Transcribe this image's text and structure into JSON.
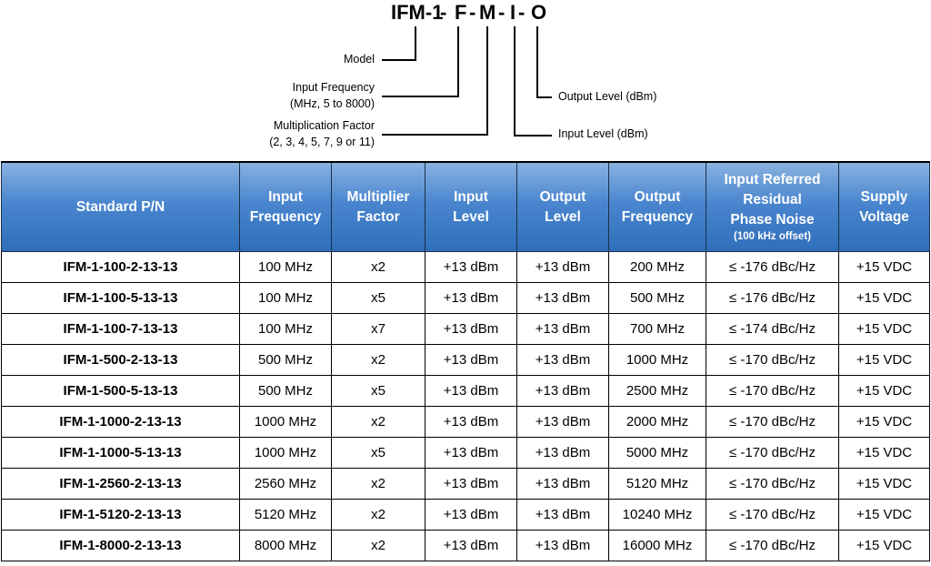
{
  "decoder": {
    "parts": [
      "IFM-1",
      "-",
      "F",
      "-",
      "M",
      "-",
      "I",
      "-",
      "O"
    ],
    "labels": {
      "model": "Model",
      "input_frequency_line1": "Input Frequency",
      "input_frequency_line2": "(MHz, 5 to 8000)",
      "multiplication_line1": "Multiplication Factor",
      "multiplication_line2": "(2, 3, 4, 5, 7, 9 or 11)",
      "output_level": "Output Level (dBm)",
      "input_level": "Input Level (dBm)"
    }
  },
  "table": {
    "headers": [
      {
        "lines": [
          "Standard P/N"
        ]
      },
      {
        "lines": [
          "Input",
          "Frequency"
        ]
      },
      {
        "lines": [
          "Multiplier",
          "Factor"
        ]
      },
      {
        "lines": [
          "Input",
          "Level"
        ]
      },
      {
        "lines": [
          "Output",
          "Level"
        ]
      },
      {
        "lines": [
          "Output",
          "Frequency"
        ]
      },
      {
        "lines": [
          "Input Referred",
          "Residual",
          "Phase Noise"
        ],
        "sub": "(100 kHz offset)"
      },
      {
        "lines": [
          "Supply",
          "Voltage"
        ]
      }
    ],
    "rows": [
      [
        "IFM-1-100-2-13-13",
        "100 MHz",
        "x2",
        "+13 dBm",
        "+13 dBm",
        "200 MHz",
        "≤ -176 dBc/Hz",
        "+15 VDC"
      ],
      [
        "IFM-1-100-5-13-13",
        "100 MHz",
        "x5",
        "+13 dBm",
        "+13 dBm",
        "500 MHz",
        "≤ -176 dBc/Hz",
        "+15 VDC"
      ],
      [
        "IFM-1-100-7-13-13",
        "100 MHz",
        "x7",
        "+13 dBm",
        "+13 dBm",
        "700 MHz",
        "≤ -174 dBc/Hz",
        "+15 VDC"
      ],
      [
        "IFM-1-500-2-13-13",
        "500 MHz",
        "x2",
        "+13 dBm",
        "+13 dBm",
        "1000 MHz",
        "≤ -170 dBc/Hz",
        "+15 VDC"
      ],
      [
        "IFM-1-500-5-13-13",
        "500 MHz",
        "x5",
        "+13 dBm",
        "+13 dBm",
        "2500 MHz",
        "≤ -170 dBc/Hz",
        "+15 VDC"
      ],
      [
        "IFM-1-1000-2-13-13",
        "1000 MHz",
        "x2",
        "+13 dBm",
        "+13 dBm",
        "2000 MHz",
        "≤ -170 dBc/Hz",
        "+15 VDC"
      ],
      [
        "IFM-1-1000-5-13-13",
        "1000 MHz",
        "x5",
        "+13 dBm",
        "+13 dBm",
        "5000 MHz",
        "≤ -170 dBc/Hz",
        "+15 VDC"
      ],
      [
        "IFM-1-2560-2-13-13",
        "2560 MHz",
        "x2",
        "+13 dBm",
        "+13 dBm",
        "5120 MHz",
        "≤ -170 dBc/Hz",
        "+15 VDC"
      ],
      [
        "IFM-1-5120-2-13-13",
        "5120 MHz",
        "x2",
        "+13 dBm",
        "+13 dBm",
        "10240 MHz",
        "≤ -170 dBc/Hz",
        "+15 VDC"
      ],
      [
        "IFM-1-8000-2-13-13",
        "8000 MHz",
        "x2",
        "+13 dBm",
        "+13 dBm",
        "16000 MHz",
        "≤ -170 dBc/Hz",
        "+15 VDC"
      ]
    ]
  }
}
